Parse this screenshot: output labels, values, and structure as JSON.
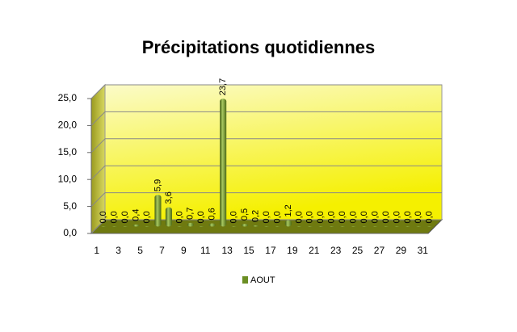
{
  "chart_data": {
    "type": "bar",
    "title": "Précipitations quotidiennes",
    "categories": [
      "1",
      null,
      "3",
      null,
      "5",
      null,
      "7",
      null,
      "9",
      null,
      "11",
      null,
      "13",
      null,
      "15",
      null,
      "17",
      null,
      "19",
      null,
      "21",
      null,
      "23",
      null,
      "25",
      null,
      "27",
      null,
      "29",
      null,
      "31"
    ],
    "series": [
      {
        "name": "AOUT",
        "color": "#6b8e23",
        "values": [
          0,
          0,
          0,
          0.4,
          0,
          5.9,
          3.6,
          0,
          0.7,
          0,
          0.6,
          23.7,
          0,
          0.5,
          0.2,
          0,
          0,
          1.2,
          0,
          0,
          0,
          0,
          0,
          0,
          0,
          0,
          0,
          0,
          0,
          0,
          0
        ],
        "value_labels": [
          "0,0",
          "0,0",
          "0,0",
          "0,4",
          "0,0",
          "5,9",
          "3,6",
          "0,0",
          "0,7",
          "0,0",
          "0,6",
          "23,7",
          "0,0",
          "0,5",
          "0,2",
          "0,0",
          "0,0",
          "1,2",
          "0,0",
          "0,0",
          "0,0",
          "0,0",
          "0,0",
          "0,0",
          "0,0",
          "0,0",
          "0,0",
          "0,0",
          "0,0",
          "0,0",
          "0,0"
        ]
      }
    ],
    "ylim": [
      0,
      25
    ],
    "yticks": [
      {
        "value": 0,
        "label": "0,0"
      },
      {
        "value": 5,
        "label": "5,0"
      },
      {
        "value": 10,
        "label": "10,0"
      },
      {
        "value": 15,
        "label": "15,0"
      },
      {
        "value": 20,
        "label": "20,0"
      },
      {
        "value": 25,
        "label": "25,0"
      }
    ],
    "grid": true,
    "legend": "bottom"
  }
}
